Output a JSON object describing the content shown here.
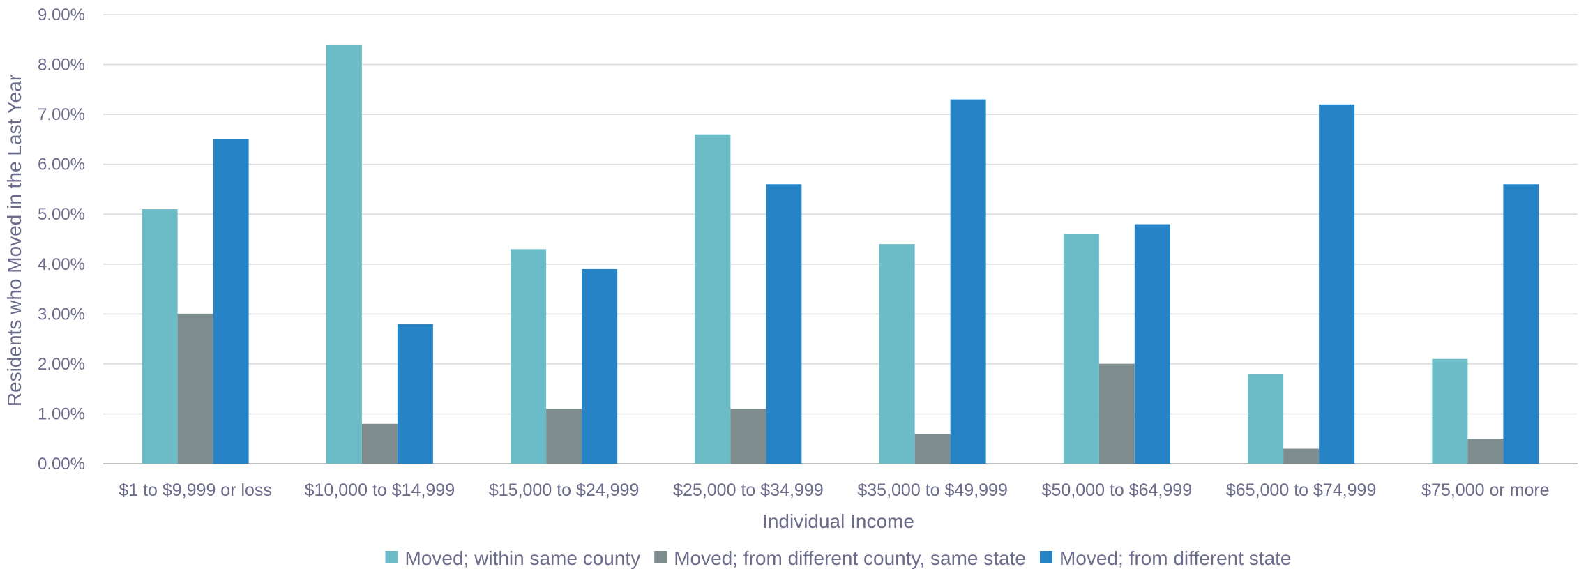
{
  "chart_data": {
    "type": "bar",
    "title": "",
    "xlabel": "Individual Income",
    "ylabel": "Residents who Moved in the Last Year",
    "ylim": [
      0,
      9
    ],
    "y_unit": "%",
    "yticks": [
      "0.00%",
      "1.00%",
      "2.00%",
      "3.00%",
      "4.00%",
      "5.00%",
      "6.00%",
      "7.00%",
      "8.00%",
      "9.00%"
    ],
    "grid": true,
    "legend_position": "bottom",
    "categories": [
      "$1 to $9,999 or loss",
      "$10,000 to $14,999",
      "$15,000 to $24,999",
      "$25,000 to $34,999",
      "$35,000 to $49,999",
      "$50,000 to $64,999",
      "$65,000 to $74,999",
      "$75,000 or more"
    ],
    "series": [
      {
        "name": "Moved; within same county",
        "color": "#6cbcc7",
        "values": [
          5.1,
          8.4,
          4.3,
          6.6,
          4.4,
          4.6,
          1.8,
          2.1
        ]
      },
      {
        "name": "Moved; from different county, same state",
        "color": "#7f8c8d",
        "values": [
          3.0,
          0.8,
          1.1,
          1.1,
          0.6,
          2.0,
          0.3,
          0.5
        ]
      },
      {
        "name": "Moved; from different  state",
        "color": "#2683c6",
        "values": [
          6.5,
          2.8,
          3.9,
          5.6,
          7.3,
          4.8,
          7.2,
          5.6
        ]
      }
    ]
  }
}
